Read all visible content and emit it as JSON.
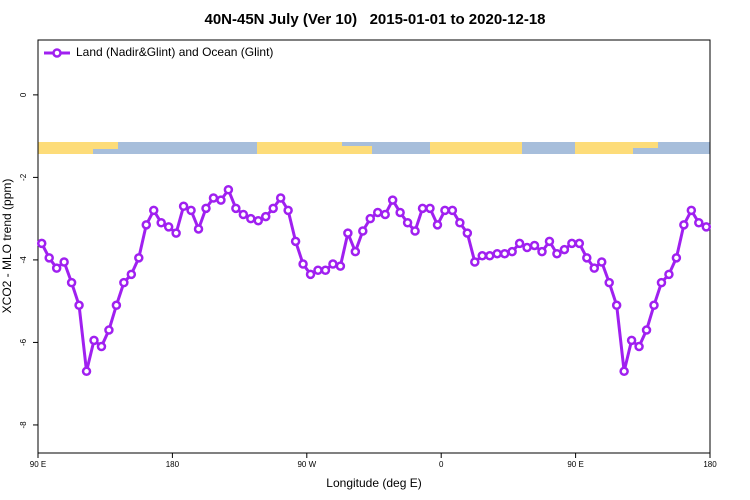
{
  "chart_data": {
    "type": "line",
    "title": "40N-45N July (Ver 10)   2015-01-01 to 2020-12-18",
    "x_label": "Longitude (deg E)",
    "y_label": "XCO2 - MLO trend (ppm)",
    "xlim": [
      90,
      540
    ],
    "ylim": [
      -8.68,
      1.33
    ],
    "xticks": [
      {
        "value": 90,
        "label": "90 E"
      },
      {
        "value": 180,
        "label": "180"
      },
      {
        "value": 270,
        "label": "90 W"
      },
      {
        "value": 360,
        "label": "0"
      },
      {
        "value": 450,
        "label": "90 E"
      },
      {
        "value": 540,
        "label": "180"
      }
    ],
    "yticks": [
      0,
      -2,
      -4,
      -6,
      -8
    ],
    "legend_position": "top-left",
    "series": [
      {
        "name": "Land (Nadir&Glint) and Ocean (Glint)",
        "color": "#a020f0",
        "x": [
          92.5,
          97.5,
          102.5,
          107.5,
          112.5,
          117.5,
          122.5,
          127.5,
          132.5,
          137.5,
          142.5,
          147.5,
          152.5,
          157.5,
          162.5,
          167.5,
          172.5,
          177.5,
          182.5,
          187.5,
          192.5,
          197.5,
          202.5,
          207.5,
          212.5,
          217.5,
          222.5,
          227.5,
          232.5,
          237.5,
          242.5,
          247.5,
          252.5,
          257.5,
          262.5,
          267.5,
          272.5,
          277.5,
          282.5,
          287.5,
          292.5,
          297.5,
          302.5,
          307.5,
          312.5,
          317.5,
          322.5,
          327.5,
          332.5,
          337.5,
          342.5,
          347.5,
          352.5,
          357.5,
          362.5,
          367.5,
          372.5,
          377.5,
          382.5,
          387.5,
          392.5,
          397.5,
          402.5,
          407.5,
          412.5,
          417.5,
          422.5,
          427.5,
          432.5,
          437.5,
          442.5,
          447.5,
          452.5,
          457.5,
          462.5,
          467.5,
          472.5,
          477.5,
          482.5,
          487.5,
          492.5,
          497.5,
          502.5,
          507.5,
          512.5,
          517.5,
          522.5,
          527.5,
          532.5,
          537.5
        ],
        "values": [
          -3.6,
          -3.95,
          -4.2,
          -4.05,
          -4.55,
          -5.1,
          -6.7,
          -5.95,
          -6.1,
          -5.7,
          -5.1,
          -4.55,
          -4.35,
          -3.95,
          -3.15,
          -2.8,
          -3.1,
          -3.2,
          -3.35,
          -2.7,
          -2.8,
          -3.25,
          -2.75,
          -2.5,
          -2.55,
          -2.3,
          -2.75,
          -2.9,
          -3.0,
          -3.05,
          -2.95,
          -2.75,
          -2.5,
          -2.8,
          -3.55,
          -4.1,
          -4.35,
          -4.25,
          -4.25,
          -4.1,
          -4.15,
          -3.35,
          -3.8,
          -3.3,
          -3.0,
          -2.85,
          -2.9,
          -2.55,
          -2.85,
          -3.1,
          -3.3,
          -2.75,
          -2.75,
          -3.15,
          -2.8,
          -2.8,
          -3.1,
          -3.35,
          -4.05,
          -3.9,
          -3.9,
          -3.85,
          -3.85,
          -3.8,
          -3.6,
          -3.7,
          -3.65,
          -3.8,
          -3.55,
          -3.85,
          -3.75,
          -3.6,
          -3.6,
          -3.95,
          -4.2,
          -4.05,
          -4.55,
          -5.1,
          -6.7,
          -5.95,
          -6.1,
          -5.7,
          -5.1,
          -4.55,
          -4.35,
          -3.95,
          -3.15,
          -2.8,
          -3.1,
          -3.2
        ]
      }
    ]
  }
}
